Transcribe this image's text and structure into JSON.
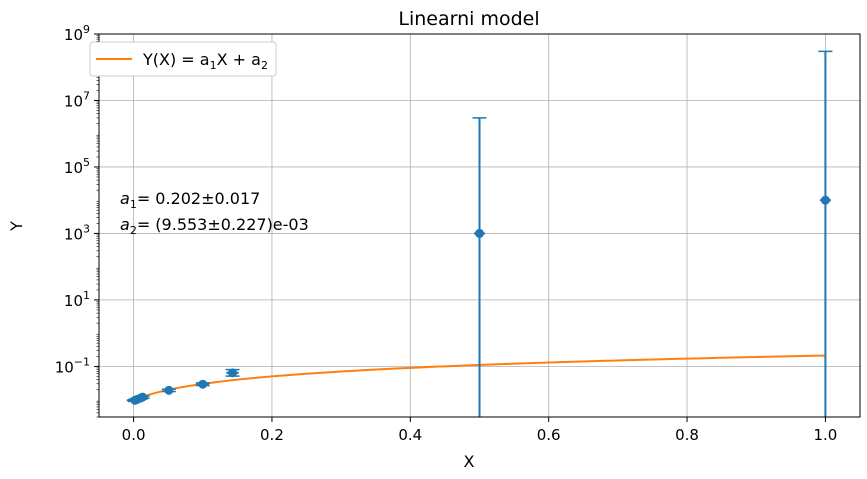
{
  "chart_data": {
    "type": "scatter",
    "title": "Linearni model",
    "xlabel": "X",
    "ylabel": "Y",
    "xlim": [
      -0.05,
      1.05
    ],
    "ylim": [
      0.003,
      1000000000
    ],
    "yscale": "log",
    "grid": true,
    "legend_position": "top-left",
    "x_ticks": [
      {
        "value": 0.0,
        "label": "0.0"
      },
      {
        "value": 0.2,
        "label": "0.2"
      },
      {
        "value": 0.4,
        "label": "0.4"
      },
      {
        "value": 0.6,
        "label": "0.6"
      },
      {
        "value": 0.8,
        "label": "0.8"
      },
      {
        "value": 1.0,
        "label": "1.0"
      }
    ],
    "y_ticks": [
      {
        "value": 0.1,
        "base": "10",
        "exp": "−1"
      },
      {
        "value": 10,
        "base": "10",
        "exp": "1"
      },
      {
        "value": 1000,
        "base": "10",
        "exp": "3"
      },
      {
        "value": 100000,
        "base": "10",
        "exp": "5"
      },
      {
        "value": 10000000,
        "base": "10",
        "exp": "7"
      },
      {
        "value": 1000000000,
        "base": "10",
        "exp": "9"
      }
    ],
    "data_points": {
      "color": "#1f77b4",
      "points": [
        {
          "x": 0.002,
          "y": 0.0095,
          "xerr": 0.012,
          "ylow": 0.0088,
          "yhigh": 0.0102
        },
        {
          "x": 0.005,
          "y": 0.0101,
          "xerr": 0.008,
          "ylow": 0.0094,
          "yhigh": 0.0108
        },
        {
          "x": 0.01,
          "y": 0.0111,
          "xerr": 0.008,
          "ylow": 0.0103,
          "yhigh": 0.0119
        },
        {
          "x": 0.013,
          "y": 0.0119,
          "xerr": 0.008,
          "ylow": 0.011,
          "yhigh": 0.0128
        },
        {
          "x": 0.051,
          "y": 0.019,
          "xerr": 0.006,
          "ylow": 0.0175,
          "yhigh": 0.0206
        },
        {
          "x": 0.1,
          "y": 0.029,
          "xerr": 0.009,
          "ylow": 0.0265,
          "yhigh": 0.0318
        },
        {
          "x": 0.143,
          "y": 0.064,
          "xerr": 0.009,
          "ylow": 0.051,
          "yhigh": 0.08
        },
        {
          "x": 0.5,
          "y": 1000,
          "xerr": 0.008,
          "ylow": 0.003,
          "yhigh": 3000000
        },
        {
          "x": 1.0,
          "y": 10000,
          "xerr": 0.008,
          "ylow": 0.003,
          "yhigh": 300000000
        }
      ]
    },
    "fit_line": {
      "label_prefix": "Y(X) = a",
      "label_mid": "X + a",
      "color": "#ff7f0e",
      "a1": 0.202,
      "a2": 0.009553,
      "x_range": [
        0.0,
        1.0
      ]
    },
    "annotations": {
      "a1_line": "= 0.202±0.017",
      "a2_line": "= (9.553±0.227)e-03"
    }
  }
}
